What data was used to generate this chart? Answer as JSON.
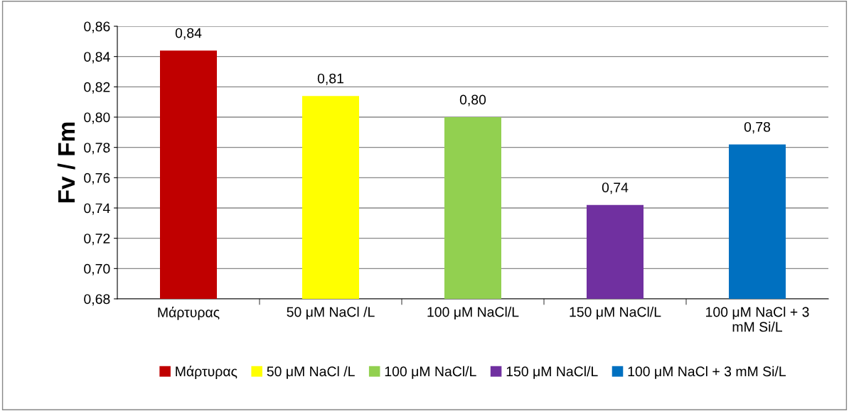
{
  "chart_data": {
    "type": "bar",
    "ylabel": "Fv / Fm",
    "categories": [
      "Μάρτυρας",
      "50 μM NaCl /L",
      "100 μM NaCl/L",
      "150 μM NaCl/L",
      "100 μM NaCl + 3 mM Si/L"
    ],
    "series": [
      {
        "name": "Μάρτυρας",
        "color": "#c00000",
        "values": [
          0.844,
          null,
          null,
          null,
          null
        ],
        "value_labels": [
          "0,84",
          null,
          null,
          null,
          null
        ]
      },
      {
        "name": "50 μM NaCl /L",
        "color": "#ffff00",
        "values": [
          null,
          0.814,
          null,
          null,
          null
        ],
        "value_labels": [
          null,
          "0,81",
          null,
          null,
          null
        ]
      },
      {
        "name": "100 μM NaCl/L",
        "color": "#92d050",
        "values": [
          null,
          null,
          0.8,
          null,
          null
        ],
        "value_labels": [
          null,
          null,
          "0,80",
          null,
          null
        ]
      },
      {
        "name": "150 μM NaCl/L",
        "color": "#7030a0",
        "values": [
          null,
          null,
          null,
          0.742,
          null
        ],
        "value_labels": [
          null,
          null,
          null,
          "0,74",
          null
        ]
      },
      {
        "name": "100 μM NaCl + 3 mM Si/L",
        "color": "#0070c0",
        "values": [
          null,
          null,
          null,
          null,
          0.782
        ],
        "value_labels": [
          null,
          null,
          null,
          null,
          "0,78"
        ]
      }
    ],
    "ylim": [
      0.68,
      0.86
    ],
    "yticks": [
      {
        "value": 0.68,
        "label": "0,68"
      },
      {
        "value": 0.7,
        "label": "0,70"
      },
      {
        "value": 0.72,
        "label": "0,72"
      },
      {
        "value": 0.74,
        "label": "0,74"
      },
      {
        "value": 0.76,
        "label": "0,76"
      },
      {
        "value": 0.78,
        "label": "0,78"
      },
      {
        "value": 0.8,
        "label": "0,80"
      },
      {
        "value": 0.82,
        "label": "0,82"
      },
      {
        "value": 0.84,
        "label": "0,84"
      },
      {
        "value": 0.86,
        "label": "0,86"
      }
    ],
    "grid": "y",
    "legend": "bottom"
  }
}
